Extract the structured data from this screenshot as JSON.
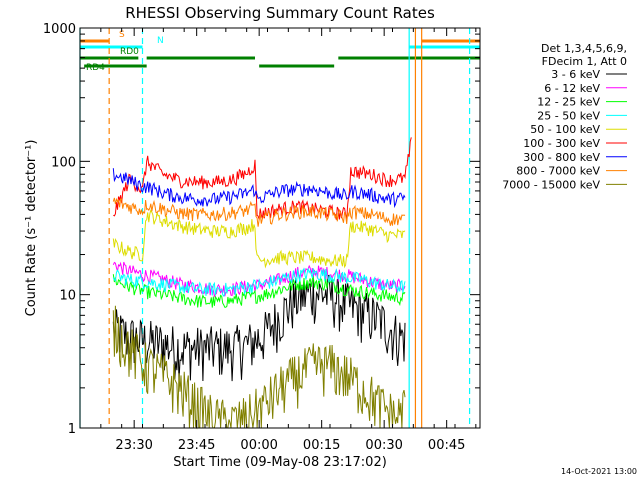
{
  "chart_data": {
    "type": "line",
    "title": "RHESSI Observing Summary Count Rates",
    "xlabel": "Start Time (09-May-08 23:17:02)",
    "ylabel": "Count Rate (s⁻¹ detector⁻¹)",
    "yscale": "log",
    "ylim": [
      1,
      1000
    ],
    "xlim_minutes": [
      0,
      96
    ],
    "xticks": [
      {
        "m": 13,
        "label": "23:30"
      },
      {
        "m": 28,
        "label": "23:45"
      },
      {
        "m": 43,
        "label": "00:00"
      },
      {
        "m": 58,
        "label": "00:15"
      },
      {
        "m": 73,
        "label": "00:30"
      },
      {
        "m": 88,
        "label": "00:45"
      }
    ],
    "yticks": [
      {
        "v": 1,
        "label": "1"
      },
      {
        "v": 10,
        "label": "10"
      },
      {
        "v": 100,
        "label": "100"
      },
      {
        "v": 1000,
        "label": "1000"
      }
    ],
    "legend": {
      "header": [
        "Det 1,3,4,5,6,9,",
        "FDecim 1, Att 0"
      ],
      "placement": "right"
    },
    "series": [
      {
        "name": "3 - 6 keV",
        "color": "#000000",
        "x": [
          8,
          12,
          16,
          20,
          24,
          28,
          32,
          36,
          40,
          44,
          48,
          52,
          56,
          60,
          64,
          68,
          72,
          76,
          78
        ],
        "values": [
          5.5,
          4.8,
          4.5,
          4.3,
          4.0,
          4.0,
          4.0,
          4.0,
          4.2,
          5.0,
          7.0,
          9.5,
          10.5,
          10.0,
          8.5,
          7.5,
          6.5,
          5.0,
          4.8
        ]
      },
      {
        "name": "6 - 12 keV",
        "color": "#ff00ff",
        "x": [
          8,
          12,
          16,
          20,
          24,
          28,
          32,
          36,
          40,
          44,
          48,
          52,
          56,
          60,
          64,
          68,
          72,
          76,
          78
        ],
        "values": [
          17,
          15,
          14,
          13,
          12,
          11.5,
          11,
          11,
          11.5,
          12,
          13,
          14.5,
          15,
          14.5,
          14,
          13,
          12,
          11.5,
          12
        ]
      },
      {
        "name": "12 - 25 keV",
        "color": "#00ff00",
        "x": [
          8,
          12,
          16,
          20,
          24,
          28,
          32,
          36,
          40,
          44,
          48,
          52,
          56,
          60,
          64,
          68,
          72,
          76,
          78
        ],
        "values": [
          13,
          11.5,
          10.5,
          10,
          9.5,
          9.0,
          8.8,
          9.0,
          9.5,
          10,
          11,
          12,
          12.5,
          12,
          11,
          10.5,
          10,
          9.5,
          9.5
        ]
      },
      {
        "name": "25 - 50 keV",
        "color": "#00ffff",
        "x": [
          8,
          12,
          16,
          20,
          24,
          28,
          32,
          36,
          40,
          44,
          48,
          52,
          56,
          60,
          64,
          68,
          72,
          76,
          78
        ],
        "values": [
          14,
          13,
          12.5,
          12,
          11.5,
          11,
          11,
          11,
          11.5,
          12,
          13,
          14,
          14.5,
          14,
          13.5,
          13,
          12,
          11.5,
          11.5
        ]
      },
      {
        "name": "50 - 100 keV",
        "color": "#dddd00",
        "x": [
          8,
          12,
          15,
          16,
          20,
          24,
          28,
          32,
          36,
          40,
          42,
          42.5,
          48,
          52,
          56,
          60,
          64,
          65,
          70,
          74,
          78
        ],
        "values": [
          24,
          21,
          20,
          40,
          36,
          33,
          31,
          30,
          30,
          32,
          34,
          18,
          19,
          19,
          19,
          18,
          18,
          33,
          31,
          28,
          28
        ]
      },
      {
        "name": "100 - 300 keV",
        "color": "#ff0000",
        "x": [
          8,
          12,
          15,
          16,
          20,
          24,
          28,
          32,
          36,
          40,
          42,
          42.5,
          48,
          52,
          56,
          60,
          64,
          65,
          70,
          74,
          78,
          79.5
        ],
        "values": [
          40,
          75,
          60,
          100,
          80,
          72,
          70,
          70,
          72,
          82,
          95,
          40,
          44,
          46,
          44,
          42,
          40,
          85,
          80,
          72,
          75,
          140
        ]
      },
      {
        "name": "300 - 800 keV",
        "color": "#0000ff",
        "x": [
          8,
          12,
          15,
          16,
          20,
          24,
          28,
          32,
          36,
          40,
          42,
          42.5,
          48,
          52,
          56,
          60,
          64,
          65,
          70,
          74,
          78
        ],
        "values": [
          80,
          72,
          65,
          65,
          58,
          54,
          52,
          52,
          54,
          58,
          62,
          52,
          60,
          62,
          62,
          58,
          55,
          60,
          56,
          52,
          53
        ]
      },
      {
        "name": "800 - 7000 keV",
        "color": "#ff8000",
        "x": [
          8,
          12,
          15,
          16,
          20,
          24,
          28,
          32,
          36,
          40,
          42,
          42.5,
          48,
          52,
          56,
          60,
          64,
          65,
          70,
          74,
          78
        ],
        "values": [
          50,
          46,
          43,
          48,
          44,
          41,
          40,
          40,
          41,
          43,
          45,
          36,
          40,
          42,
          42,
          40,
          38,
          42,
          40,
          37,
          37
        ]
      },
      {
        "name": "7000 - 15000 keV",
        "color": "#808000",
        "x": [
          8,
          10,
          12,
          16,
          20,
          24,
          28,
          32,
          36,
          40,
          44,
          48,
          52,
          56,
          60,
          64,
          68,
          72,
          76,
          78
        ],
        "values": [
          6,
          5,
          4,
          3,
          2.5,
          2,
          1.5,
          1.2,
          1.1,
          1.2,
          1.5,
          2,
          2.5,
          3,
          3,
          2.5,
          2,
          1.5,
          1.2,
          1.5
        ]
      }
    ],
    "flags": [
      {
        "label": "S",
        "color": "#ff8000",
        "segments": [
          [
            0,
            7
          ],
          [
            82,
            96
          ]
        ],
        "y": 41
      },
      {
        "label": "N",
        "color": "#00ffff",
        "segments": [
          [
            0,
            15
          ],
          [
            79,
            96
          ]
        ],
        "y": 47
      },
      {
        "label": "RD0",
        "color": "#008000",
        "segments": [
          [
            0,
            14
          ],
          [
            16,
            42
          ],
          [
            62,
            96
          ]
        ],
        "y": 58
      },
      {
        "label": "RD4",
        "color": "#008000",
        "segments": [
          [
            1,
            16
          ],
          [
            43,
            61
          ]
        ],
        "y": 66
      }
    ],
    "vlines": [
      {
        "m": 0,
        "color": "#00ffff",
        "style": "solid"
      },
      {
        "m": 7,
        "color": "#ff8000",
        "style": "dashed"
      },
      {
        "m": 15,
        "color": "#00ffff",
        "style": "dashed"
      },
      {
        "m": 79,
        "color": "#00ffff",
        "style": "solid"
      },
      {
        "m": 80.5,
        "color": "#ff8000",
        "style": "solid"
      },
      {
        "m": 82,
        "color": "#ff8000",
        "style": "solid"
      },
      {
        "m": 93.5,
        "color": "#00ffff",
        "style": "dashed"
      }
    ],
    "footer": "14-Oct-2021 13:00"
  }
}
